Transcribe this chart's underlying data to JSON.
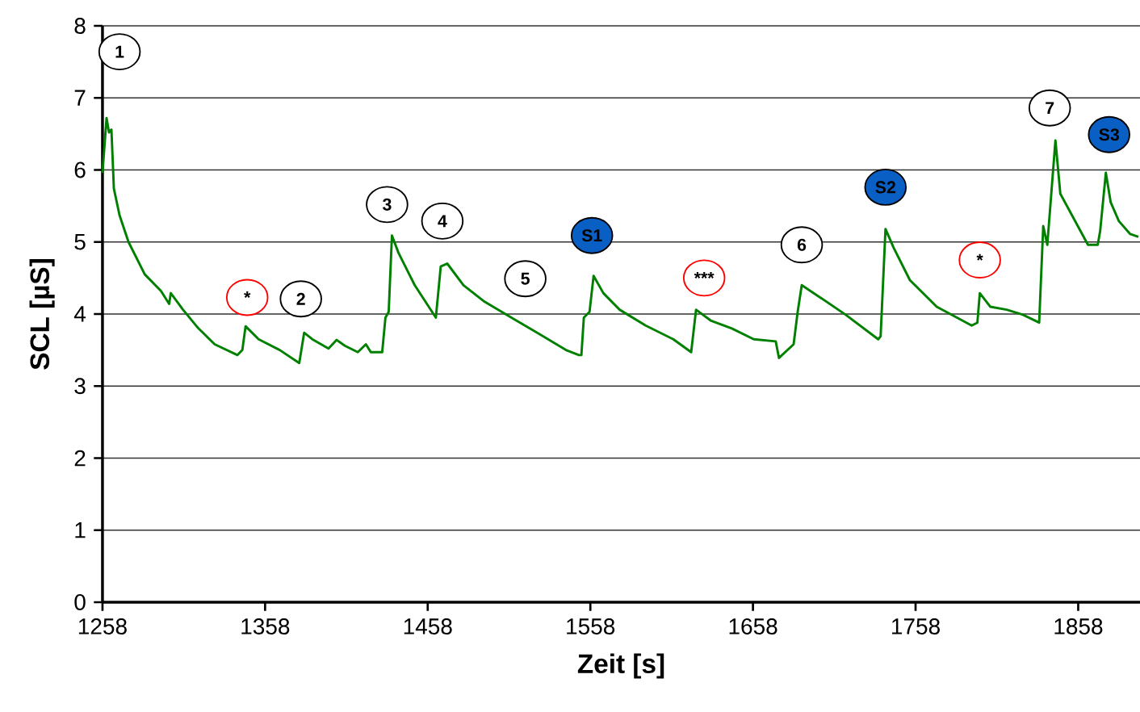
{
  "chart_data": {
    "type": "line",
    "xlabel": "Zeit [s]",
    "ylabel": "SCL [µS]",
    "xlim": [
      1258,
      1896
    ],
    "xticks": [
      1258,
      1358,
      1458,
      1558,
      1658,
      1758,
      1858
    ],
    "ylim": [
      0,
      8
    ],
    "yticks": [
      0,
      1,
      2,
      3,
      4,
      5,
      6,
      7,
      8
    ],
    "grid": "y",
    "marker": "none",
    "line_style": "solid",
    "series": [
      {
        "color": "#008000",
        "x": [
          1258,
          1260.5,
          1262,
          1263.5,
          1265,
          1268.5,
          1274,
          1284,
          1294,
          1299,
          1300,
          1307.5,
          1317,
          1327,
          1341,
          1344,
          1346,
          1354,
          1367,
          1379,
          1382,
          1387,
          1397,
          1402,
          1407,
          1415,
          1420,
          1423,
          1430,
          1432,
          1434,
          1436,
          1440,
          1450,
          1463,
          1466,
          1470,
          1480,
          1493,
          1509.5,
          1526,
          1543,
          1551,
          1552.5,
          1554,
          1557.5,
          1560,
          1566,
          1576,
          1592,
          1609,
          1620,
          1623,
          1632,
          1645,
          1658.5,
          1672,
          1674,
          1683,
          1685.5,
          1688,
          1698,
          1715,
          1735,
          1736.5,
          1739.5,
          1744.5,
          1754.5,
          1771,
          1792.5,
          1796,
          1797.5,
          1804,
          1814,
          1824,
          1834,
          1836.5,
          1839,
          1844,
          1847,
          1864,
          1870,
          1871.5,
          1875,
          1878,
          1883,
          1890,
          1895
        ],
        "values": [
          5.96,
          6.72,
          6.52,
          6.56,
          5.74,
          5.37,
          5.0,
          4.55,
          4.32,
          4.14,
          4.29,
          4.06,
          3.8,
          3.58,
          3.43,
          3.5,
          3.83,
          3.65,
          3.5,
          3.32,
          3.74,
          3.65,
          3.52,
          3.64,
          3.56,
          3.47,
          3.58,
          3.47,
          3.47,
          3.95,
          4.03,
          5.09,
          4.85,
          4.4,
          3.95,
          4.66,
          4.7,
          4.4,
          4.17,
          3.95,
          3.73,
          3.5,
          3.43,
          3.43,
          3.95,
          4.03,
          4.53,
          4.29,
          4.06,
          3.84,
          3.65,
          3.47,
          4.06,
          3.91,
          3.8,
          3.65,
          3.62,
          3.39,
          3.58,
          4.03,
          4.4,
          4.25,
          3.99,
          3.65,
          3.69,
          5.18,
          4.92,
          4.47,
          4.1,
          3.84,
          3.88,
          4.29,
          4.1,
          4.06,
          3.99,
          3.88,
          5.22,
          4.96,
          6.41,
          5.67,
          4.96,
          4.96,
          5.15,
          5.96,
          5.55,
          5.29,
          5.11,
          5.07
        ]
      }
    ],
    "annotations": [
      {
        "text": "1",
        "x": 1268.5,
        "y": 7.64
      },
      {
        "text": "*",
        "x": 1347,
        "y": 4.23
      },
      {
        "text": "2",
        "x": 1380,
        "y": 4.21
      },
      {
        "text": "3",
        "x": 1433,
        "y": 5.52
      },
      {
        "text": "4",
        "x": 1467,
        "y": 5.29
      },
      {
        "text": "5",
        "x": 1518,
        "y": 4.49
      },
      {
        "text": "S1",
        "x": 1559,
        "y": 5.09
      },
      {
        "text": "***",
        "x": 1628,
        "y": 4.5
      },
      {
        "text": "6",
        "x": 1688,
        "y": 4.96
      },
      {
        "text": "S2",
        "x": 1739.5,
        "y": 5.76
      },
      {
        "text": "*",
        "x": 1797.5,
        "y": 4.75
      },
      {
        "text": "7",
        "x": 1840.5,
        "y": 6.86
      },
      {
        "text": "S3",
        "x": 1877,
        "y": 6.49
      }
    ]
  }
}
